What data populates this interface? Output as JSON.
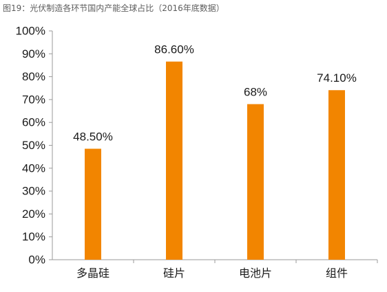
{
  "caption": "图19：光伏制造各环节国内产能全球占比（2016年底数据）",
  "colors": {
    "bar": "#F28500",
    "axis": "#9a9a9a",
    "text": "#1a1a1a"
  },
  "chart_data": {
    "type": "bar",
    "title": "",
    "xlabel": "",
    "ylabel": "",
    "ylim": [
      0,
      100
    ],
    "y_tick_step": 10,
    "y_tick_labels": [
      "0%",
      "10%",
      "20%",
      "30%",
      "40%",
      "50%",
      "60%",
      "70%",
      "80%",
      "90%",
      "100%"
    ],
    "grid": false,
    "categories": [
      "多晶硅",
      "硅片",
      "电池片",
      "组件"
    ],
    "values": [
      48.5,
      86.6,
      68,
      74.1
    ],
    "data_labels": [
      "48.50%",
      "86.60%",
      "68%",
      "74.10%"
    ]
  }
}
